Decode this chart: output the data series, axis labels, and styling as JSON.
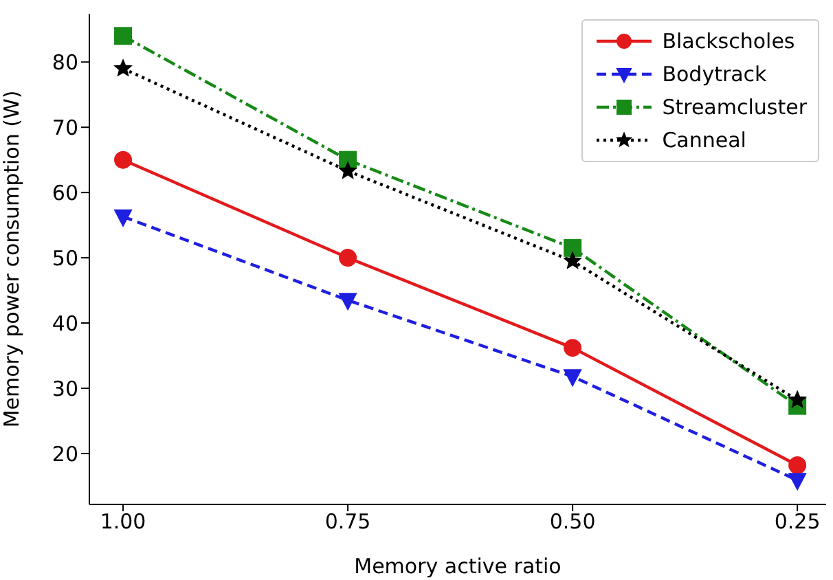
{
  "chart_data": {
    "type": "line",
    "xlabel": "Memory active ratio",
    "ylabel": "Memory power consumption (W)",
    "x": [
      1.0,
      0.75,
      0.5,
      0.25
    ],
    "xlim": [
      1.0375,
      0.218
    ],
    "xticks": [
      {
        "value": 1.0,
        "label": "1.00"
      },
      {
        "value": 0.75,
        "label": "0.75"
      },
      {
        "value": 0.5,
        "label": "0.50"
      },
      {
        "value": 0.25,
        "label": "0.25"
      }
    ],
    "ylim": [
      12.2,
      87.4
    ],
    "yticks": [
      20,
      30,
      40,
      50,
      60,
      70,
      80
    ],
    "legend": "top right",
    "grid": false,
    "series": [
      {
        "name": "Blackscholes",
        "color": "#e31a1c",
        "values": [
          65,
          50,
          36.2,
          18.2
        ],
        "marker": "circle",
        "line_style": "solid"
      },
      {
        "name": "Bodytrack",
        "color": "#1f1fe0",
        "values": [
          56.3,
          43.5,
          31.8,
          15.9
        ],
        "marker": "triangle",
        "line_style": "dashed"
      },
      {
        "name": "Streamcluster",
        "color": "#188a18",
        "values": [
          84.0,
          65.0,
          51.5,
          27.3
        ],
        "marker": "square",
        "line_style": "dashdot"
      },
      {
        "name": "Canneal",
        "color": "#000000",
        "values": [
          79.0,
          63.3,
          49.5,
          28.2
        ],
        "marker": "star",
        "line_style": "dotted"
      }
    ]
  }
}
